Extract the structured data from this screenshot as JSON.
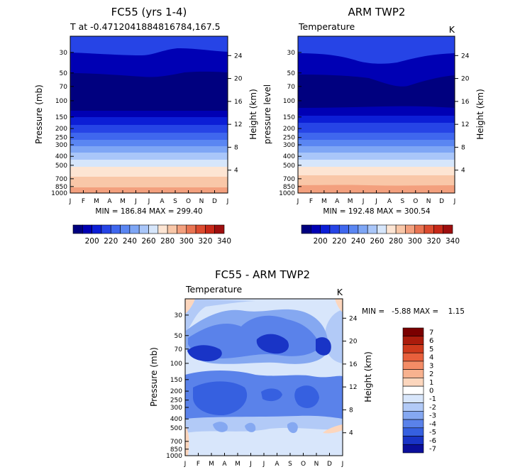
{
  "chart_data": [
    {
      "type": "contour",
      "title": "FC55 (yrs 1-4)",
      "subtitle": "T at -0.4712041884816784,167.5",
      "ylabel_left": "Pressure (mb)",
      "ylabel_right": "Height (km)",
      "minmax": "MIN = 186.84  MAX = 299.40",
      "min": 186.84,
      "max": 299.4,
      "x_ticks": [
        "J",
        "F",
        "M",
        "A",
        "M",
        "J",
        "J",
        "A",
        "S",
        "O",
        "N",
        "D",
        "J"
      ],
      "p_ticks": [
        30,
        50,
        70,
        100,
        150,
        200,
        250,
        300,
        400,
        500,
        700,
        850,
        1000
      ],
      "p_range": [
        20,
        1000
      ],
      "height_ticks": [
        4,
        8,
        12,
        16,
        20,
        24
      ],
      "colorbar_levels": [
        190,
        200,
        210,
        220,
        230,
        240,
        250,
        260,
        270,
        280,
        290,
        300,
        310,
        320,
        330,
        340
      ],
      "colorbar_labels": [
        "200",
        "220",
        "240",
        "260",
        "280",
        "300",
        "320",
        "340"
      ]
    },
    {
      "type": "contour",
      "title": "ARM TWP2",
      "subtitle_left": "Temperature",
      "subtitle_right": "K",
      "ylabel_left": "pressure level",
      "ylabel_right": "Height (km)",
      "minmax": "MIN = 192.48  MAX = 300.54",
      "min": 192.48,
      "max": 300.54,
      "x_ticks": [
        "J",
        "F",
        "M",
        "A",
        "M",
        "J",
        "J",
        "A",
        "S",
        "O",
        "N",
        "D",
        "J"
      ],
      "p_ticks": [
        30,
        50,
        70,
        100,
        150,
        200,
        250,
        300,
        400,
        500,
        700,
        850,
        1000
      ],
      "height_ticks": [
        4,
        8,
        12,
        16,
        20,
        24
      ],
      "colorbar_labels": [
        "200",
        "220",
        "240",
        "260",
        "280",
        "300",
        "320",
        "340"
      ]
    },
    {
      "type": "contour",
      "title": "FC55 - ARM TWP2",
      "subtitle_left": "Temperature",
      "subtitle_right": "K",
      "ylabel_left": "Pressure (mb)",
      "ylabel_right": "Height (km)",
      "minmax": "MIN =   -5.88 MAX =    1.15",
      "min": -5.88,
      "max": 1.15,
      "x_ticks": [
        "J",
        "F",
        "M",
        "A",
        "M",
        "J",
        "J",
        "A",
        "S",
        "O",
        "N",
        "D",
        "J"
      ],
      "p_ticks": [
        30,
        50,
        70,
        100,
        150,
        200,
        250,
        300,
        400,
        500,
        700,
        850,
        1000
      ],
      "height_ticks": [
        4,
        8,
        12,
        16,
        20,
        24
      ],
      "colorbar_labels": [
        "7",
        "6",
        "5",
        "4",
        "3",
        "2",
        "1",
        "0",
        "-1",
        "-2",
        "-3",
        "-4",
        "-5",
        "-6",
        "-7"
      ]
    }
  ],
  "colors": {
    "temp_scale": [
      "#00007f",
      "#0000b4",
      "#0c1ed6",
      "#2644e6",
      "#3f67ee",
      "#5a86f2",
      "#7ea6f5",
      "#a9c6f9",
      "#d6e6fb",
      "#fde5d3",
      "#f9c7a8",
      "#f3a07e",
      "#e97452",
      "#dc4b2f",
      "#c72818",
      "#9e0e0e"
    ],
    "diff_scale": [
      "#7a0000",
      "#ab1c0c",
      "#cf3a1c",
      "#e8603c",
      "#f38c66",
      "#f8b28f",
      "#fcd6bd",
      "#ffffff",
      "#d8e6fb",
      "#b2caf7",
      "#85a8f1",
      "#5a82ea",
      "#3660e0",
      "#1934c6",
      "#0a0e9a"
    ]
  }
}
